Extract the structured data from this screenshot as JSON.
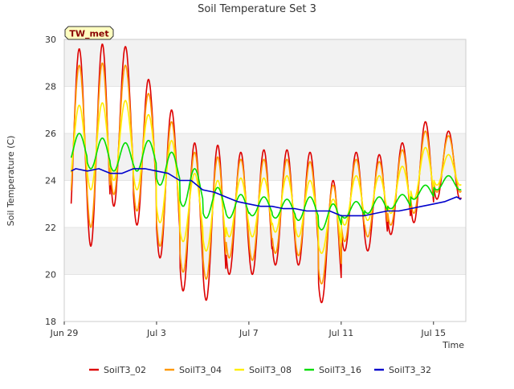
{
  "chart_data": {
    "type": "line",
    "title": "Soil Temperature Set 3",
    "xlabel": "Time",
    "ylabel": "Soil Temperature (C)",
    "ylim": [
      18,
      30
    ],
    "xlim_days": [
      0,
      17.4
    ],
    "y_ticks": [
      18,
      20,
      22,
      24,
      26,
      28,
      30
    ],
    "x_ticks": [
      {
        "label": "Jun 29",
        "day": 0
      },
      {
        "label": "Jul 3",
        "day": 4
      },
      {
        "label": "Jul 7",
        "day": 8
      },
      {
        "label": "Jul 11",
        "day": 12
      },
      {
        "label": "Jul 15",
        "day": 16
      }
    ],
    "grid": true,
    "legend_position": "bottom",
    "annotation": "TW_met",
    "series": [
      {
        "name": "SoilT3_02",
        "color": "#dd0000",
        "daily_min": [
          21.3,
          21.2,
          22.9,
          22.1,
          20.7,
          19.3,
          18.9,
          20.0,
          20.0,
          20.4,
          20.4,
          18.8,
          21.0,
          21.0,
          21.7,
          22.2,
          23.2
        ],
        "daily_max": [
          29.6,
          29.8,
          29.7,
          28.3,
          27.0,
          25.6,
          25.5,
          25.2,
          25.3,
          25.3,
          25.2,
          24.0,
          25.2,
          25.1,
          25.6,
          26.5,
          26.1
        ]
      },
      {
        "name": "SoilT3_04",
        "color": "#ff9900",
        "daily_min": [
          22.2,
          22.0,
          23.4,
          22.7,
          21.2,
          20.1,
          19.8,
          20.7,
          20.6,
          20.9,
          20.8,
          19.6,
          21.4,
          21.6,
          22.1,
          22.6,
          23.5
        ],
        "daily_max": [
          28.9,
          29.0,
          28.9,
          27.7,
          26.5,
          25.2,
          25.0,
          24.9,
          24.9,
          24.9,
          24.8,
          23.8,
          24.9,
          24.8,
          25.3,
          26.1,
          25.9
        ]
      },
      {
        "name": "SoilT3_08",
        "color": "#ffee00",
        "daily_min": [
          23.6,
          23.6,
          24.0,
          23.6,
          22.2,
          21.4,
          21.0,
          21.6,
          21.6,
          21.8,
          21.6,
          20.9,
          22.1,
          22.3,
          22.6,
          23.2,
          23.8
        ],
        "daily_max": [
          27.2,
          27.3,
          27.4,
          26.8,
          25.7,
          24.3,
          24.0,
          24.1,
          24.1,
          24.2,
          24.0,
          23.2,
          24.2,
          24.2,
          24.6,
          25.4,
          25.1
        ]
      },
      {
        "name": "SoilT3_16",
        "color": "#00dd00",
        "daily_min": [
          24.7,
          24.5,
          24.4,
          24.4,
          23.8,
          22.9,
          22.4,
          22.4,
          22.5,
          22.4,
          22.3,
          21.9,
          22.4,
          22.6,
          22.8,
          23.2,
          23.6
        ],
        "daily_max": [
          26.0,
          25.8,
          25.6,
          25.7,
          25.2,
          24.5,
          23.7,
          23.4,
          23.3,
          23.2,
          23.3,
          23.0,
          23.1,
          23.3,
          23.4,
          23.8,
          24.2
        ]
      },
      {
        "name": "SoilT3_32",
        "color": "#0000cc",
        "x": [
          0,
          0.5,
          1,
          1.5,
          2,
          2.5,
          3,
          3.5,
          4,
          4.5,
          5,
          5.5,
          6,
          6.5,
          7,
          7.5,
          8,
          8.5,
          9,
          9.5,
          10,
          10.5,
          11,
          11.5,
          12,
          12.5,
          13,
          13.5,
          14,
          14.5,
          15,
          15.5,
          16,
          16.5,
          17,
          17.4
        ],
        "values": [
          24.4,
          24.5,
          24.4,
          24.5,
          24.3,
          24.3,
          24.5,
          24.5,
          24.4,
          24.3,
          24.0,
          24.0,
          23.6,
          23.5,
          23.3,
          23.1,
          23.0,
          22.9,
          22.9,
          22.8,
          22.8,
          22.7,
          22.7,
          22.7,
          22.5,
          22.5,
          22.5,
          22.6,
          22.7,
          22.7,
          22.8,
          22.9,
          23.0,
          23.1,
          23.3,
          23.2
        ]
      }
    ]
  }
}
